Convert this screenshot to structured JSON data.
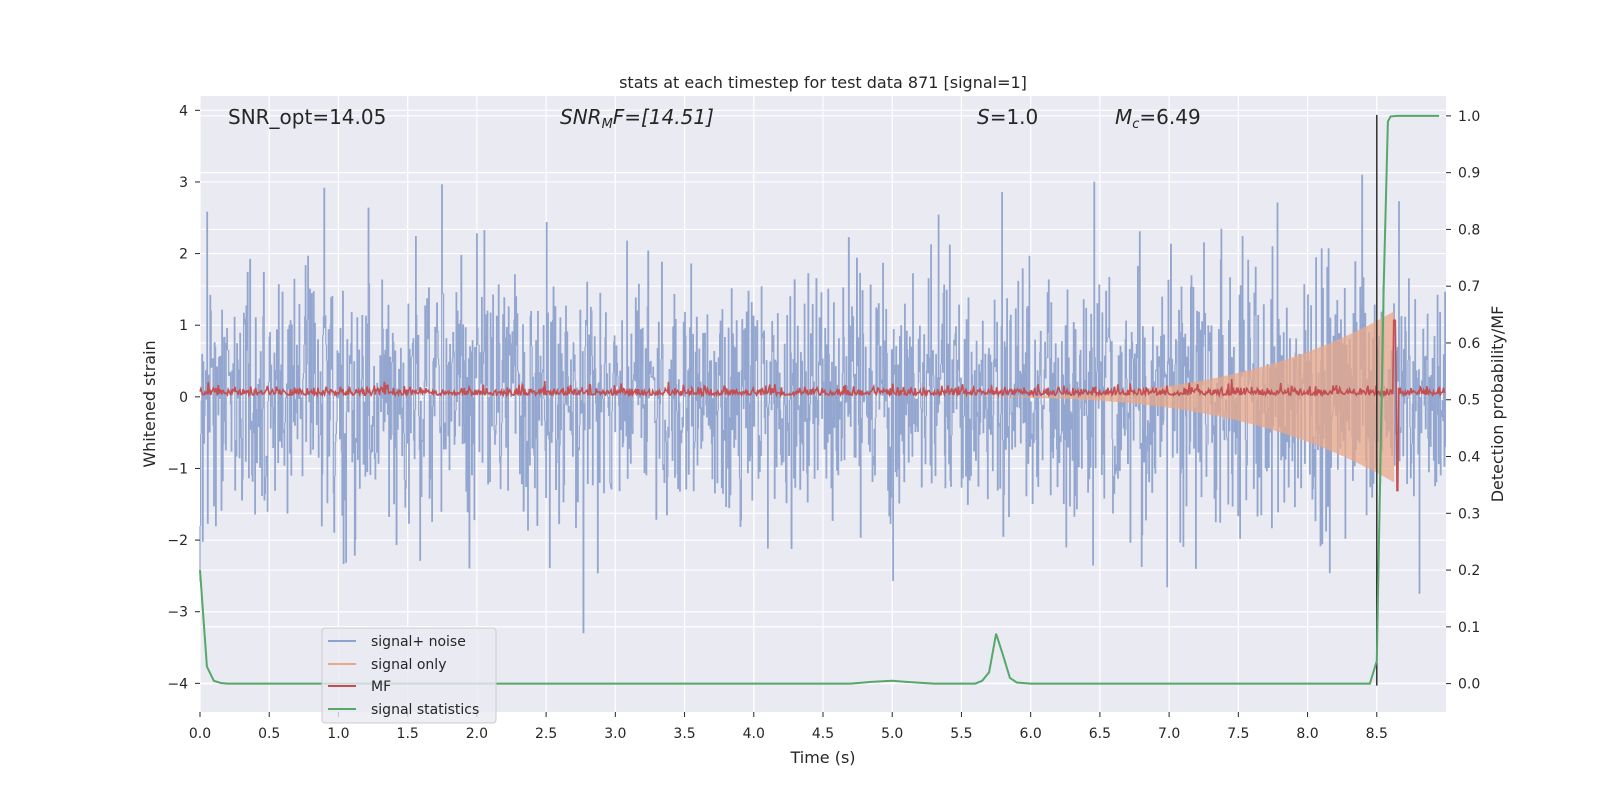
{
  "chart_data": {
    "type": "line",
    "title": "stats at each timestep for test data 871 [signal=1]",
    "xlabel": "Time (s)",
    "ylabel": "Whitened strain",
    "y2label": "Detection probability/MF",
    "xlim": [
      0.0,
      9.0
    ],
    "ylim": [
      -4.4,
      4.2
    ],
    "y2lim": [
      -0.05,
      1.035
    ],
    "x_ticks": [
      0.0,
      0.5,
      1.0,
      1.5,
      2.0,
      2.5,
      3.0,
      3.5,
      4.0,
      4.5,
      5.0,
      5.5,
      6.0,
      6.5,
      7.0,
      7.5,
      8.0,
      8.5
    ],
    "x_tick_labels": [
      "0.0",
      "0.5",
      "1.0",
      "1.5",
      "2.0",
      "2.5",
      "3.0",
      "3.5",
      "4.0",
      "4.5",
      "5.0",
      "5.5",
      "6.0",
      "6.5",
      "7.0",
      "7.5",
      "8.0",
      "8.5"
    ],
    "y_ticks": [
      4,
      3,
      2,
      1,
      0,
      -1,
      -2,
      -3,
      -4
    ],
    "y_tick_labels": [
      "4",
      "3",
      "2",
      "1",
      "0",
      "−1",
      "−2",
      "−3",
      "−4"
    ],
    "y2_ticks": [
      1.0,
      0.9,
      0.8,
      0.7,
      0.6,
      0.5,
      0.4,
      0.3,
      0.2,
      0.1,
      0.0
    ],
    "y2_tick_labels": [
      "1.0",
      "0.9",
      "0.8",
      "0.7",
      "0.6",
      "0.5",
      "0.4",
      "0.3",
      "0.2",
      "0.1",
      "0.0"
    ],
    "grid": true,
    "legend_position": "bottom-left",
    "annotations": {
      "snr_opt": "SNR_opt=14.05",
      "snr_mf_main": "SNR",
      "snr_mf_sub": "M",
      "snr_mf_rest": "F=[14.51]",
      "s_main": "S",
      "s_rest": "=1.0",
      "mc_main": "M",
      "mc_sub": "c",
      "mc_rest": "=6.49"
    },
    "marker_line_x": 8.5,
    "series": [
      {
        "name": "signal+ noise",
        "color": "#8da2cc",
        "description_values": "whitened noise, roughly Gaussian between about -3.3 and 3.5"
      },
      {
        "name": "signal only",
        "color": "#e8a88a",
        "chirp_start": 5.2,
        "chirp_end": 8.63,
        "peak_amplitude": 1.2
      },
      {
        "name": "MF",
        "color": "#c44e52",
        "baseline_y2": 0.51,
        "peak": {
          "x": 8.63,
          "y2": 0.64
        },
        "trough": {
          "x": 8.65,
          "y2": 0.34
        }
      },
      {
        "name": "signal statistics",
        "color": "#55a868",
        "x": [
          0.0,
          0.05,
          0.1,
          0.15,
          0.2,
          0.5,
          1.0,
          2.0,
          3.0,
          4.0,
          4.7,
          4.85,
          5.0,
          5.1,
          5.3,
          5.6,
          5.65,
          5.7,
          5.75,
          5.8,
          5.85,
          5.9,
          6.0,
          7.0,
          8.0,
          8.45,
          8.5,
          8.52,
          8.55,
          8.58,
          8.6,
          8.65,
          8.7,
          8.95
        ],
        "y2": [
          0.2,
          0.03,
          0.005,
          0.001,
          0.0,
          0.0,
          0.0,
          0.0,
          0.0,
          0.0,
          0.0,
          0.003,
          0.005,
          0.003,
          0.0,
          0.0,
          0.005,
          0.02,
          0.088,
          0.05,
          0.01,
          0.002,
          0.0,
          0.0,
          0.0,
          0.0,
          0.04,
          0.3,
          0.7,
          0.99,
          0.999,
          1.0,
          1.0,
          1.0
        ]
      }
    ]
  }
}
